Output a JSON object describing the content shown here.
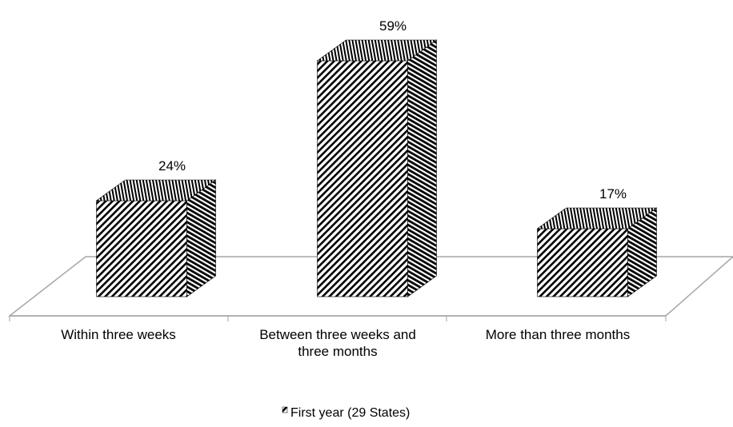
{
  "chart_data": {
    "type": "bar",
    "categories": [
      "Within three weeks",
      "Between three weeks and three months",
      "More than three months"
    ],
    "category_lines": [
      [
        "Within three weeks"
      ],
      [
        "Between three weeks and",
        "three months"
      ],
      [
        "More than three months"
      ]
    ],
    "series": [
      {
        "name": "First year (29 States)",
        "values": [
          24,
          59,
          17
        ]
      }
    ],
    "data_labels": [
      "24%",
      "59%",
      "17%"
    ],
    "legend": {
      "position": "bottom",
      "entries": [
        "First year (29 States)"
      ]
    },
    "ylim": [
      0,
      60
    ],
    "style": "3d-column",
    "grid": false,
    "colors": {
      "bar_fill": "#ffffff",
      "hatch": "#000000",
      "floor_edge": "#a6a6a6"
    }
  }
}
